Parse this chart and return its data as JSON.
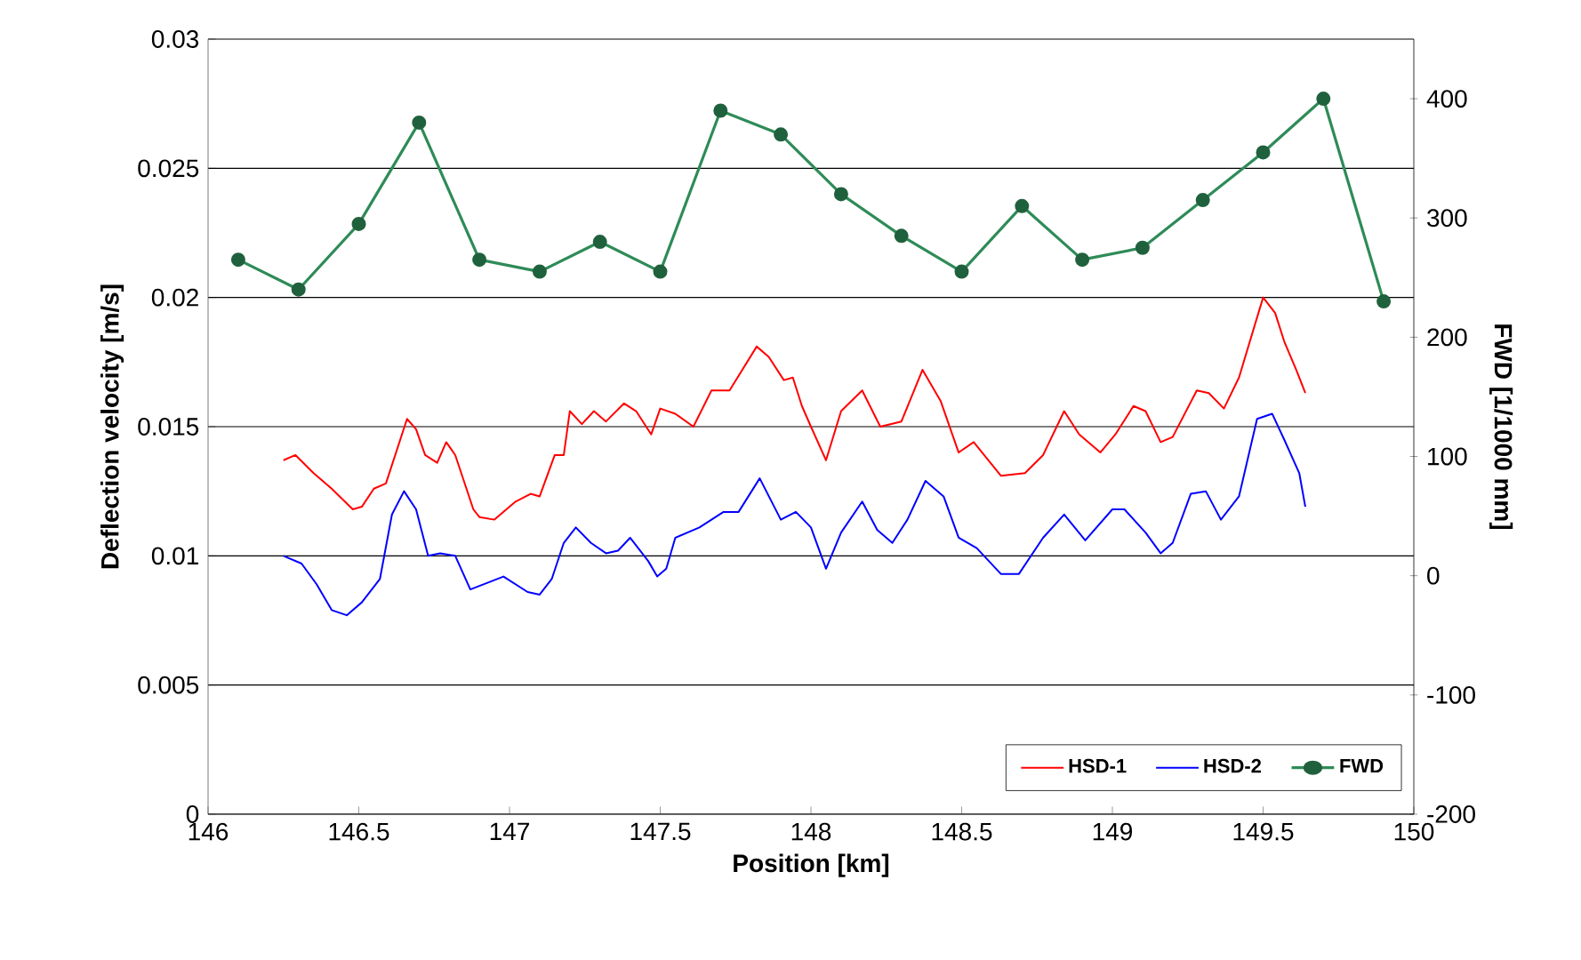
{
  "chart_data": {
    "type": "line",
    "xlabel": "Position [km]",
    "ylabel": "Deflection velocity [m/s]",
    "y2label": "FWD [1/1000 mm]",
    "xlim": [
      146,
      150
    ],
    "xticks": [
      146,
      146.5,
      147,
      147.5,
      148,
      148.5,
      149,
      149.5,
      150
    ],
    "ylim": [
      0,
      0.03
    ],
    "yticks": [
      0,
      0.005,
      0.01,
      0.015,
      0.02,
      0.025,
      0.03
    ],
    "y2lim": [
      -200,
      450
    ],
    "y2ticks": [
      -200,
      -100,
      0,
      100,
      200,
      300,
      400
    ],
    "grid": "y",
    "legend": "bottom right",
    "series": [
      {
        "name": "HSD-1",
        "color": "#ff0000",
        "marker": "none",
        "x": [
          146.25,
          146.29,
          146.35,
          146.41,
          146.48,
          146.51,
          146.55,
          146.59,
          146.66,
          146.69,
          146.72,
          146.76,
          146.79,
          146.82,
          146.88,
          146.9,
          146.95,
          147.02,
          147.07,
          147.1,
          147.15,
          147.18,
          147.2,
          147.24,
          147.28,
          147.32,
          147.38,
          147.42,
          147.47,
          147.5,
          147.55,
          147.61,
          147.67,
          147.73,
          147.82,
          147.86,
          147.91,
          147.94,
          147.97,
          148.0,
          148.05,
          148.1,
          148.17,
          148.23,
          148.3,
          148.37,
          148.43,
          148.49,
          148.54,
          148.63,
          148.71,
          148.77,
          148.84,
          148.89,
          148.96,
          149.01,
          149.07,
          149.11,
          149.16,
          149.2,
          149.28,
          149.32,
          149.37,
          149.42,
          149.5,
          149.54,
          149.57,
          149.61,
          149.64
        ],
        "values": [
          0.0137,
          0.0139,
          0.0132,
          0.0126,
          0.0118,
          0.0119,
          0.0126,
          0.0128,
          0.0153,
          0.0149,
          0.0139,
          0.0136,
          0.0144,
          0.0139,
          0.0118,
          0.0115,
          0.0114,
          0.0121,
          0.0124,
          0.0123,
          0.0139,
          0.0139,
          0.0156,
          0.0151,
          0.0156,
          0.0152,
          0.0159,
          0.0156,
          0.0147,
          0.0157,
          0.0155,
          0.015,
          0.0164,
          0.0164,
          0.0181,
          0.0177,
          0.0168,
          0.0169,
          0.0158,
          0.015,
          0.0137,
          0.0156,
          0.0164,
          0.015,
          0.0152,
          0.0172,
          0.016,
          0.014,
          0.0144,
          0.0131,
          0.0132,
          0.0139,
          0.0156,
          0.0147,
          0.014,
          0.0147,
          0.0158,
          0.0156,
          0.0144,
          0.0146,
          0.0164,
          0.0163,
          0.0157,
          0.0169,
          0.02,
          0.0194,
          0.0183,
          0.0172,
          0.0163
        ]
      },
      {
        "name": "HSD-2",
        "color": "#0000ff",
        "marker": "none",
        "x": [
          146.25,
          146.31,
          146.36,
          146.41,
          146.46,
          146.51,
          146.57,
          146.61,
          146.65,
          146.69,
          146.73,
          146.77,
          146.82,
          146.87,
          146.98,
          147.06,
          147.1,
          147.14,
          147.18,
          147.22,
          147.27,
          147.32,
          147.36,
          147.4,
          147.46,
          147.49,
          147.52,
          147.55,
          147.63,
          147.71,
          147.76,
          147.83,
          147.9,
          147.95,
          148.0,
          148.05,
          148.1,
          148.17,
          148.22,
          148.27,
          148.32,
          148.38,
          148.44,
          148.49,
          148.55,
          148.63,
          148.69,
          148.77,
          148.84,
          148.91,
          149.0,
          149.04,
          149.11,
          149.16,
          149.2,
          149.26,
          149.31,
          149.36,
          149.42,
          149.48,
          149.53,
          149.57,
          149.62,
          149.64
        ],
        "values": [
          0.01,
          0.0097,
          0.0089,
          0.0079,
          0.0077,
          0.0082,
          0.0091,
          0.0116,
          0.0125,
          0.0118,
          0.01,
          0.0101,
          0.01,
          0.0087,
          0.0092,
          0.0086,
          0.0085,
          0.0091,
          0.0105,
          0.0111,
          0.0105,
          0.0101,
          0.0102,
          0.0107,
          0.0098,
          0.0092,
          0.0095,
          0.0107,
          0.0111,
          0.0117,
          0.0117,
          0.013,
          0.0114,
          0.0117,
          0.0111,
          0.0095,
          0.0109,
          0.0121,
          0.011,
          0.0105,
          0.0114,
          0.0129,
          0.0123,
          0.0107,
          0.0103,
          0.0093,
          0.0093,
          0.0107,
          0.0116,
          0.0106,
          0.0118,
          0.0118,
          0.0109,
          0.0101,
          0.0105,
          0.0124,
          0.0125,
          0.0114,
          0.0123,
          0.0153,
          0.0155,
          0.0145,
          0.0132,
          0.0119
        ]
      },
      {
        "name": "FWD",
        "color": "#2e8b57",
        "marker": "circle",
        "axis": "y2",
        "x": [
          146.1,
          146.3,
          146.5,
          146.7,
          146.9,
          147.1,
          147.3,
          147.5,
          147.7,
          147.9,
          148.1,
          148.3,
          148.5,
          148.7,
          148.9,
          149.1,
          149.3,
          149.5,
          149.7,
          149.9
        ],
        "values": [
          265,
          240,
          295,
          380,
          265,
          255,
          280,
          255,
          390,
          370,
          320,
          285,
          255,
          310,
          265,
          275,
          315,
          355,
          400,
          230
        ]
      }
    ]
  }
}
